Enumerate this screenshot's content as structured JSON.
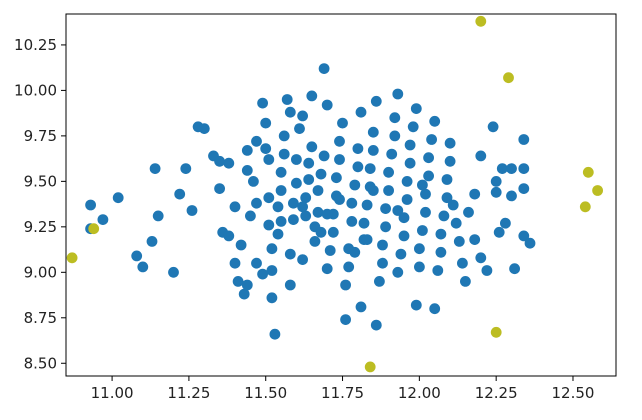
{
  "chart_data": {
    "type": "scatter",
    "title": "",
    "xlabel": "",
    "ylabel": "",
    "xlim": [
      10.85,
      12.64
    ],
    "ylim": [
      8.43,
      10.42
    ],
    "xticks": [
      11.0,
      11.25,
      11.5,
      11.75,
      12.0,
      12.25,
      12.5
    ],
    "xtick_labels": [
      "11.00",
      "11.25",
      "11.50",
      "11.75",
      "12.00",
      "12.25",
      "12.50"
    ],
    "yticks": [
      8.5,
      8.75,
      9.0,
      9.25,
      9.5,
      9.75,
      10.0,
      10.25
    ],
    "ytick_labels": [
      "8.50",
      "8.75",
      "9.00",
      "9.25",
      "9.50",
      "9.75",
      "10.00",
      "10.25"
    ],
    "grid": false,
    "colors": {
      "inliers": "#1f77b4",
      "outliers": "#bcbd22",
      "axes": "#000000"
    },
    "series": [
      {
        "color": "#1f77b4",
        "points": [
          [
            10.93,
            9.37
          ],
          [
            10.93,
            9.24
          ],
          [
            10.97,
            9.29
          ],
          [
            11.02,
            9.41
          ],
          [
            11.08,
            9.09
          ],
          [
            11.1,
            9.03
          ],
          [
            11.13,
            9.17
          ],
          [
            11.15,
            9.31
          ],
          [
            11.14,
            9.57
          ],
          [
            11.2,
            9.0
          ],
          [
            11.22,
            9.43
          ],
          [
            11.24,
            9.57
          ],
          [
            11.26,
            9.34
          ],
          [
            11.28,
            9.8
          ],
          [
            11.3,
            9.79
          ],
          [
            11.33,
            9.64
          ],
          [
            11.35,
            9.61
          ],
          [
            11.35,
            9.46
          ],
          [
            11.36,
            9.22
          ],
          [
            11.38,
            9.2
          ],
          [
            11.4,
            9.36
          ],
          [
            11.4,
            9.05
          ],
          [
            11.41,
            8.95
          ],
          [
            11.42,
            9.15
          ],
          [
            11.43,
            8.88
          ],
          [
            11.44,
            8.93
          ],
          [
            11.44,
            9.56
          ],
          [
            11.45,
            9.31
          ],
          [
            11.46,
            9.5
          ],
          [
            11.47,
            9.72
          ],
          [
            11.47,
            9.05
          ],
          [
            11.49,
            8.99
          ],
          [
            11.49,
            9.93
          ],
          [
            11.5,
            9.82
          ],
          [
            11.5,
            9.68
          ],
          [
            11.51,
            9.62
          ],
          [
            11.51,
            9.41
          ],
          [
            11.51,
            9.26
          ],
          [
            11.52,
            9.13
          ],
          [
            11.52,
            9.01
          ],
          [
            11.52,
            8.86
          ],
          [
            11.53,
            8.66
          ],
          [
            11.54,
            9.36
          ],
          [
            11.54,
            9.21
          ],
          [
            11.55,
            9.45
          ],
          [
            11.55,
            9.55
          ],
          [
            11.56,
            9.65
          ],
          [
            11.56,
            9.75
          ],
          [
            11.57,
            9.95
          ],
          [
            11.58,
            8.93
          ],
          [
            11.58,
            9.1
          ],
          [
            11.59,
            9.29
          ],
          [
            11.59,
            9.38
          ],
          [
            11.6,
            9.49
          ],
          [
            11.6,
            9.62
          ],
          [
            11.61,
            9.79
          ],
          [
            11.62,
            9.86
          ],
          [
            11.62,
            9.07
          ],
          [
            11.63,
            9.31
          ],
          [
            11.63,
            9.41
          ],
          [
            11.64,
            9.51
          ],
          [
            11.64,
            9.6
          ],
          [
            11.65,
            9.69
          ],
          [
            11.65,
            9.97
          ],
          [
            11.66,
            9.17
          ],
          [
            11.66,
            9.25
          ],
          [
            11.67,
            9.33
          ],
          [
            11.67,
            9.45
          ],
          [
            11.68,
            9.54
          ],
          [
            11.69,
            9.64
          ],
          [
            11.69,
            10.12
          ],
          [
            11.7,
            9.92
          ],
          [
            11.7,
            9.02
          ],
          [
            11.71,
            9.12
          ],
          [
            11.72,
            9.22
          ],
          [
            11.72,
            9.32
          ],
          [
            11.73,
            9.42
          ],
          [
            11.73,
            9.52
          ],
          [
            11.74,
            9.62
          ],
          [
            11.74,
            9.72
          ],
          [
            11.75,
            9.82
          ],
          [
            11.76,
            8.74
          ],
          [
            11.76,
            8.93
          ],
          [
            11.77,
            9.03
          ],
          [
            11.77,
            9.13
          ],
          [
            11.78,
            9.28
          ],
          [
            11.78,
            9.38
          ],
          [
            11.79,
            9.48
          ],
          [
            11.8,
            9.58
          ],
          [
            11.8,
            9.68
          ],
          [
            11.81,
            9.88
          ],
          [
            11.81,
            8.81
          ],
          [
            11.82,
            9.18
          ],
          [
            11.82,
            9.27
          ],
          [
            11.83,
            9.37
          ],
          [
            11.84,
            9.47
          ],
          [
            11.84,
            9.57
          ],
          [
            11.85,
            9.67
          ],
          [
            11.85,
            9.77
          ],
          [
            11.86,
            9.94
          ],
          [
            11.86,
            8.71
          ],
          [
            11.87,
            8.95
          ],
          [
            11.88,
            9.05
          ],
          [
            11.88,
            9.15
          ],
          [
            11.89,
            9.25
          ],
          [
            11.89,
            9.35
          ],
          [
            11.9,
            9.45
          ],
          [
            11.9,
            9.55
          ],
          [
            11.91,
            9.65
          ],
          [
            11.92,
            9.75
          ],
          [
            11.92,
            9.85
          ],
          [
            11.93,
            9.98
          ],
          [
            11.93,
            9.0
          ],
          [
            11.94,
            9.1
          ],
          [
            11.95,
            9.2
          ],
          [
            11.95,
            9.3
          ],
          [
            11.96,
            9.4
          ],
          [
            11.96,
            9.5
          ],
          [
            11.97,
            9.6
          ],
          [
            11.97,
            9.7
          ],
          [
            11.98,
            9.8
          ],
          [
            11.99,
            9.9
          ],
          [
            11.99,
            8.82
          ],
          [
            12.0,
            9.03
          ],
          [
            12.0,
            9.13
          ],
          [
            12.01,
            9.23
          ],
          [
            12.02,
            9.33
          ],
          [
            12.02,
            9.43
          ],
          [
            12.03,
            9.53
          ],
          [
            12.03,
            9.63
          ],
          [
            12.04,
            9.73
          ],
          [
            12.05,
            9.83
          ],
          [
            12.05,
            8.8
          ],
          [
            12.06,
            9.01
          ],
          [
            12.07,
            9.11
          ],
          [
            12.07,
            9.21
          ],
          [
            12.08,
            9.31
          ],
          [
            12.09,
            9.41
          ],
          [
            12.09,
            9.51
          ],
          [
            12.1,
            9.61
          ],
          [
            12.1,
            9.71
          ],
          [
            12.11,
            9.37
          ],
          [
            12.12,
            9.27
          ],
          [
            12.13,
            9.17
          ],
          [
            12.14,
            9.05
          ],
          [
            12.15,
            8.95
          ],
          [
            12.16,
            9.33
          ],
          [
            12.18,
            9.43
          ],
          [
            12.18,
            9.18
          ],
          [
            12.2,
            9.64
          ],
          [
            12.2,
            9.08
          ],
          [
            12.22,
            9.01
          ],
          [
            12.24,
            9.8
          ],
          [
            12.25,
            9.5
          ],
          [
            12.25,
            9.44
          ],
          [
            12.26,
            9.22
          ],
          [
            12.27,
            9.57
          ],
          [
            12.28,
            9.27
          ],
          [
            12.3,
            9.57
          ],
          [
            12.3,
            9.42
          ],
          [
            12.31,
            9.02
          ],
          [
            12.34,
            9.2
          ],
          [
            12.34,
            9.57
          ],
          [
            12.34,
            9.46
          ],
          [
            12.34,
            9.73
          ],
          [
            12.36,
            9.16
          ],
          [
            11.38,
            9.6
          ],
          [
            11.44,
            9.67
          ],
          [
            11.58,
            9.88
          ],
          [
            11.7,
            9.32
          ],
          [
            11.79,
            9.11
          ],
          [
            11.62,
            9.36
          ],
          [
            11.55,
            9.28
          ],
          [
            11.47,
            9.38
          ],
          [
            11.68,
            9.22
          ],
          [
            11.85,
            9.45
          ],
          [
            11.93,
            9.34
          ],
          [
            12.01,
            9.48
          ],
          [
            11.74,
            9.4
          ],
          [
            11.83,
            9.18
          ]
        ]
      },
      {
        "color": "#bcbd22",
        "points": [
          [
            10.87,
            9.08
          ],
          [
            10.94,
            9.24
          ],
          [
            11.84,
            8.48
          ],
          [
            12.2,
            10.38
          ],
          [
            12.25,
            8.67
          ],
          [
            12.29,
            10.07
          ],
          [
            12.54,
            9.36
          ],
          [
            12.55,
            9.55
          ],
          [
            12.58,
            9.45
          ]
        ]
      }
    ]
  }
}
